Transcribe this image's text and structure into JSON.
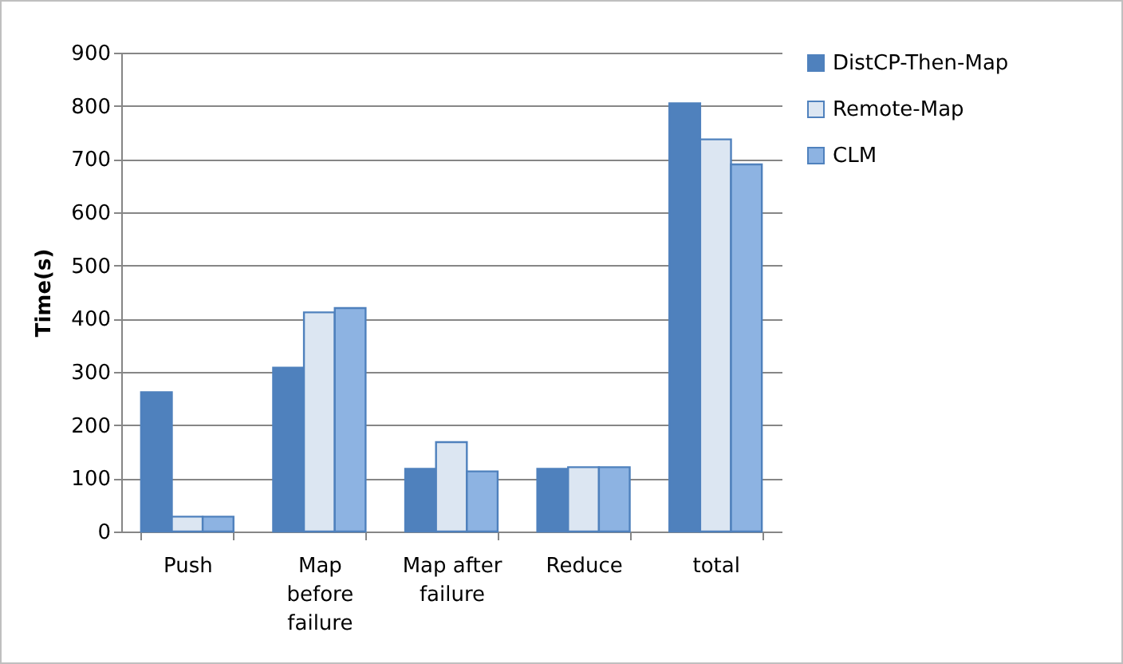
{
  "chart_data": {
    "type": "bar",
    "ylabel": "Time(s)",
    "categories": [
      "Push",
      "Map before failure",
      "Map after failure",
      "Reduce",
      "total"
    ],
    "series": [
      {
        "name": "DistCP-Then-Map",
        "color": "#4f81bd",
        "values": [
          262,
          308,
          118,
          118,
          805
        ]
      },
      {
        "name": "Remote-Map",
        "color": "#dce6f2",
        "values": [
          28,
          412,
          168,
          121,
          737
        ]
      },
      {
        "name": "CLM",
        "color": "#8db3e2",
        "values": [
          28,
          420,
          113,
          121,
          690
        ]
      }
    ],
    "ylim": [
      0,
      900
    ],
    "yticks": [
      0,
      100,
      200,
      300,
      400,
      500,
      600,
      700,
      800,
      900
    ],
    "grid": "y",
    "legend": "right"
  }
}
